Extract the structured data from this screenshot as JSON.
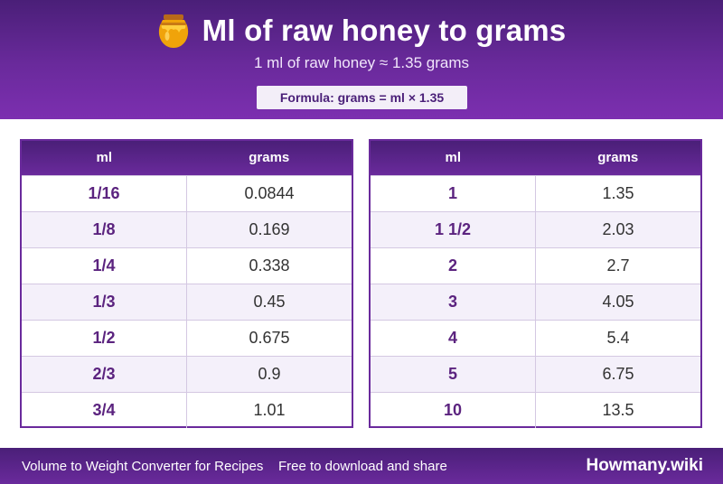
{
  "header": {
    "title": "Ml of raw honey to grams",
    "subtitle": "1 ml of raw honey ≈ 1.35 grams",
    "formula": "Formula: grams = ml × 1.35",
    "icon": "honey-pot-icon"
  },
  "tables": [
    {
      "headers": [
        "ml",
        "grams"
      ],
      "rows": [
        [
          "1/16",
          "0.0844"
        ],
        [
          "1/8",
          "0.169"
        ],
        [
          "1/4",
          "0.338"
        ],
        [
          "1/3",
          "0.45"
        ],
        [
          "1/2",
          "0.675"
        ],
        [
          "2/3",
          "0.9"
        ],
        [
          "3/4",
          "1.01"
        ]
      ]
    },
    {
      "headers": [
        "ml",
        "grams"
      ],
      "rows": [
        [
          "1",
          "1.35"
        ],
        [
          "1 1/2",
          "2.03"
        ],
        [
          "2",
          "2.7"
        ],
        [
          "3",
          "4.05"
        ],
        [
          "4",
          "5.4"
        ],
        [
          "5",
          "6.75"
        ],
        [
          "10",
          "13.5"
        ]
      ]
    }
  ],
  "footer": {
    "left": "Volume to Weight Converter for Recipes",
    "middle": "Free to download and share",
    "brand": "Howmany.wiki"
  },
  "colors": {
    "primary": "#6a2a9c",
    "dark": "#4a1f78",
    "accent_text": "#5b237f",
    "honey": "#f0a30a"
  }
}
